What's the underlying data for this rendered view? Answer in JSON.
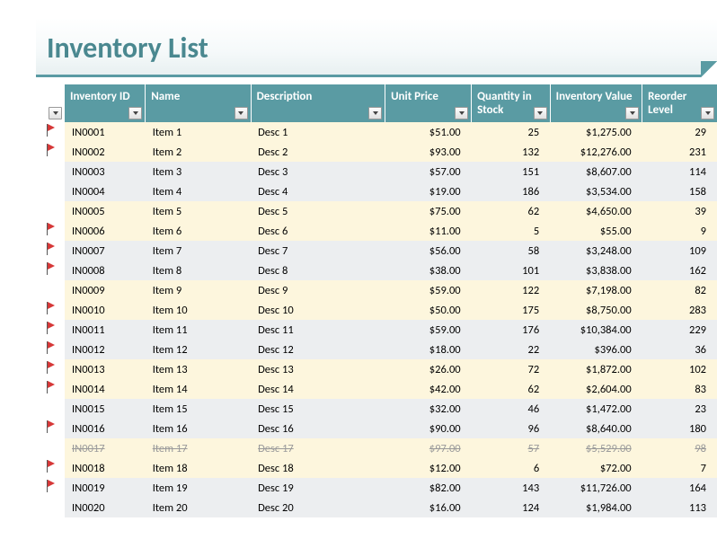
{
  "title": "Inventory List",
  "colors": {
    "header_bg": "#5a9ba3",
    "header_text": "#ffffff",
    "title_text": "#4a8890",
    "band0": "#fdf6dd",
    "band1": "#eceef0",
    "flag_red": "#d63838",
    "strike_text": "#9a9a9a"
  },
  "columns": [
    {
      "key": "id",
      "label": "Inventory ID",
      "align": "left"
    },
    {
      "key": "name",
      "label": "Name",
      "align": "left"
    },
    {
      "key": "desc",
      "label": "Description",
      "align": "left"
    },
    {
      "key": "price",
      "label": "Unit Price",
      "align": "right"
    },
    {
      "key": "qty",
      "label": "Quantity in Stock",
      "align": "right"
    },
    {
      "key": "value",
      "label": "Inventory Value",
      "align": "right"
    },
    {
      "key": "reorder",
      "label": "Reorder Level",
      "align": "right"
    }
  ],
  "rows": [
    {
      "flag": true,
      "strike": false,
      "id": "IN0001",
      "name": "Item 1",
      "desc": "Desc 1",
      "price": "$51.00",
      "qty": "25",
      "value": "$1,275.00",
      "reorder": "29"
    },
    {
      "flag": true,
      "strike": false,
      "id": "IN0002",
      "name": "Item 2",
      "desc": "Desc 2",
      "price": "$93.00",
      "qty": "132",
      "value": "$12,276.00",
      "reorder": "231"
    },
    {
      "flag": false,
      "strike": false,
      "id": "IN0003",
      "name": "Item 3",
      "desc": "Desc 3",
      "price": "$57.00",
      "qty": "151",
      "value": "$8,607.00",
      "reorder": "114"
    },
    {
      "flag": false,
      "strike": false,
      "id": "IN0004",
      "name": "Item 4",
      "desc": "Desc 4",
      "price": "$19.00",
      "qty": "186",
      "value": "$3,534.00",
      "reorder": "158"
    },
    {
      "flag": false,
      "strike": false,
      "id": "IN0005",
      "name": "Item 5",
      "desc": "Desc 5",
      "price": "$75.00",
      "qty": "62",
      "value": "$4,650.00",
      "reorder": "39"
    },
    {
      "flag": true,
      "strike": false,
      "id": "IN0006",
      "name": "Item 6",
      "desc": "Desc 6",
      "price": "$11.00",
      "qty": "5",
      "value": "$55.00",
      "reorder": "9"
    },
    {
      "flag": true,
      "strike": false,
      "id": "IN0007",
      "name": "Item 7",
      "desc": "Desc 7",
      "price": "$56.00",
      "qty": "58",
      "value": "$3,248.00",
      "reorder": "109"
    },
    {
      "flag": true,
      "strike": false,
      "id": "IN0008",
      "name": "Item 8",
      "desc": "Desc 8",
      "price": "$38.00",
      "qty": "101",
      "value": "$3,838.00",
      "reorder": "162"
    },
    {
      "flag": false,
      "strike": false,
      "id": "IN0009",
      "name": "Item 9",
      "desc": "Desc 9",
      "price": "$59.00",
      "qty": "122",
      "value": "$7,198.00",
      "reorder": "82"
    },
    {
      "flag": true,
      "strike": false,
      "id": "IN0010",
      "name": "Item 10",
      "desc": "Desc 10",
      "price": "$50.00",
      "qty": "175",
      "value": "$8,750.00",
      "reorder": "283"
    },
    {
      "flag": true,
      "strike": false,
      "id": "IN0011",
      "name": "Item 11",
      "desc": "Desc 11",
      "price": "$59.00",
      "qty": "176",
      "value": "$10,384.00",
      "reorder": "229"
    },
    {
      "flag": true,
      "strike": false,
      "id": "IN0012",
      "name": "Item 12",
      "desc": "Desc 12",
      "price": "$18.00",
      "qty": "22",
      "value": "$396.00",
      "reorder": "36"
    },
    {
      "flag": true,
      "strike": false,
      "id": "IN0013",
      "name": "Item 13",
      "desc": "Desc 13",
      "price": "$26.00",
      "qty": "72",
      "value": "$1,872.00",
      "reorder": "102"
    },
    {
      "flag": true,
      "strike": false,
      "id": "IN0014",
      "name": "Item 14",
      "desc": "Desc 14",
      "price": "$42.00",
      "qty": "62",
      "value": "$2,604.00",
      "reorder": "83"
    },
    {
      "flag": false,
      "strike": false,
      "id": "IN0015",
      "name": "Item 15",
      "desc": "Desc 15",
      "price": "$32.00",
      "qty": "46",
      "value": "$1,472.00",
      "reorder": "23"
    },
    {
      "flag": true,
      "strike": false,
      "id": "IN0016",
      "name": "Item 16",
      "desc": "Desc 16",
      "price": "$90.00",
      "qty": "96",
      "value": "$8,640.00",
      "reorder": "180"
    },
    {
      "flag": false,
      "strike": true,
      "id": "IN0017",
      "name": "Item 17",
      "desc": "Desc 17",
      "price": "$97.00",
      "qty": "57",
      "value": "$5,529.00",
      "reorder": "98"
    },
    {
      "flag": true,
      "strike": false,
      "id": "IN0018",
      "name": "Item 18",
      "desc": "Desc 18",
      "price": "$12.00",
      "qty": "6",
      "value": "$72.00",
      "reorder": "7"
    },
    {
      "flag": true,
      "strike": false,
      "id": "IN0019",
      "name": "Item 19",
      "desc": "Desc 19",
      "price": "$82.00",
      "qty": "143",
      "value": "$11,726.00",
      "reorder": "164"
    },
    {
      "flag": false,
      "strike": false,
      "id": "IN0020",
      "name": "Item 20",
      "desc": "Desc 20",
      "price": "$16.00",
      "qty": "124",
      "value": "$1,984.00",
      "reorder": "113"
    }
  ],
  "banding": {
    "pattern": [
      0,
      0,
      1,
      1
    ],
    "type": "alternating-pairs"
  }
}
